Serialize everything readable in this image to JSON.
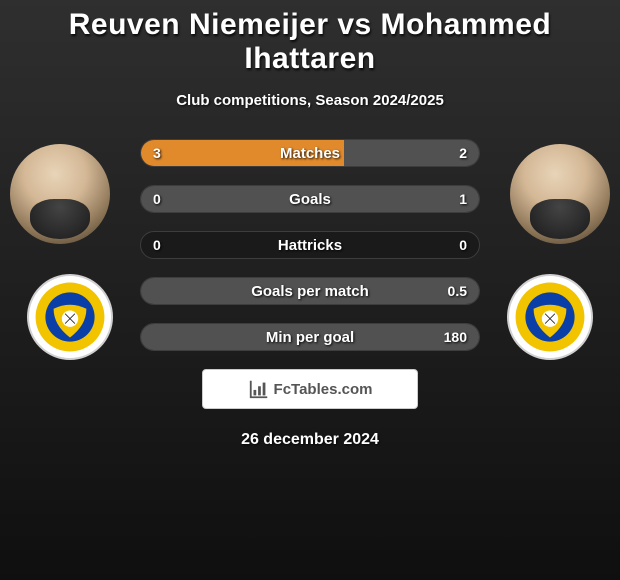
{
  "title": "Reuven Niemeijer vs Mohammed Ihattaren",
  "subtitle": "Club competitions, Season 2024/2025",
  "date": "26 december 2024",
  "footer_label": "FcTables.com",
  "colors": {
    "left_bar": "#e08a2c",
    "right_bar": "#515151",
    "empty_bar": "#1a1a1a"
  },
  "club_badge": {
    "outer_ring": "#f2c400",
    "inner": "#0a3fa8",
    "stripe": "#ffffff"
  },
  "stats": [
    {
      "label": "Matches",
      "left_display": "3",
      "right_display": "2",
      "left_val": 3,
      "right_val": 2
    },
    {
      "label": "Goals",
      "left_display": "0",
      "right_display": "1",
      "left_val": 0,
      "right_val": 1
    },
    {
      "label": "Hattricks",
      "left_display": "0",
      "right_display": "0",
      "left_val": 0,
      "right_val": 0
    },
    {
      "label": "Goals per match",
      "left_display": "",
      "right_display": "0.5",
      "left_val": 0,
      "right_val": 0.5
    },
    {
      "label": "Min per goal",
      "left_display": "",
      "right_display": "180",
      "left_val": 0,
      "right_val": 180
    }
  ]
}
